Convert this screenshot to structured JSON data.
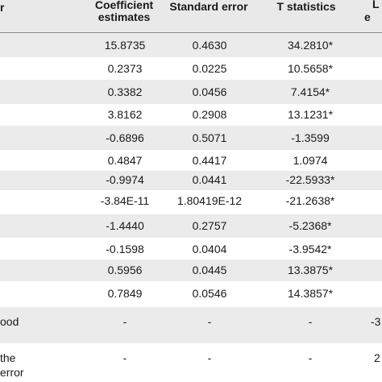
{
  "table": {
    "headers": {
      "col0": "r",
      "col1": "Coefficient estimates",
      "col2": "Standard error",
      "col3": "T statistics",
      "col4_top": "L",
      "col4_bottom": "e"
    },
    "rows": [
      {
        "label": "",
        "coef": "15.8735",
        "se": "0.4630",
        "t": "34.2810*",
        "edge": ""
      },
      {
        "label": "",
        "coef": "0.2373",
        "se": "0.0225",
        "t": "10.5658*",
        "edge": ""
      },
      {
        "label": "",
        "coef": "0.3382",
        "se": "0.0456",
        "t": "7.4154*",
        "edge": ""
      },
      {
        "label": "",
        "coef": "3.8162",
        "se": "0.2908",
        "t": "13.1231*",
        "edge": ""
      },
      {
        "label": "",
        "coef": "-0.6896",
        "se": "0.5071",
        "t": "-1.3599",
        "edge": ""
      },
      {
        "label": "",
        "coef": "0.4847",
        "se": "0.4417",
        "t": "1.0974",
        "edge": ""
      },
      {
        "label": "",
        "coef": "-0.9974",
        "se": "0.0441",
        "t": "-22.5933*",
        "edge": ""
      },
      {
        "label": "",
        "coef": "-3.84E-11",
        "se": "1.80419E-12",
        "t": "-21.2638*",
        "edge": ""
      },
      {
        "label": "",
        "coef": "-1.4440",
        "se": "0.2757",
        "t": "-5.2368*",
        "edge": ""
      },
      {
        "label": "",
        "coef": "-0.1598",
        "se": "0.0404",
        "t": "-3.9542*",
        "edge": ""
      },
      {
        "label": "",
        "coef": "0.5956",
        "se": "0.0445",
        "t": "13.3875*",
        "edge": ""
      },
      {
        "label": "",
        "coef": "0.7849",
        "se": "0.0546",
        "t": "14.3857*",
        "edge": ""
      },
      {
        "label": "ood",
        "coef": "-",
        "se": "-",
        "t": "-",
        "edge": "-3"
      },
      {
        "label": "the",
        "label2": "error",
        "coef": "-",
        "se": "-",
        "t": "-",
        "edge": "2"
      }
    ]
  }
}
